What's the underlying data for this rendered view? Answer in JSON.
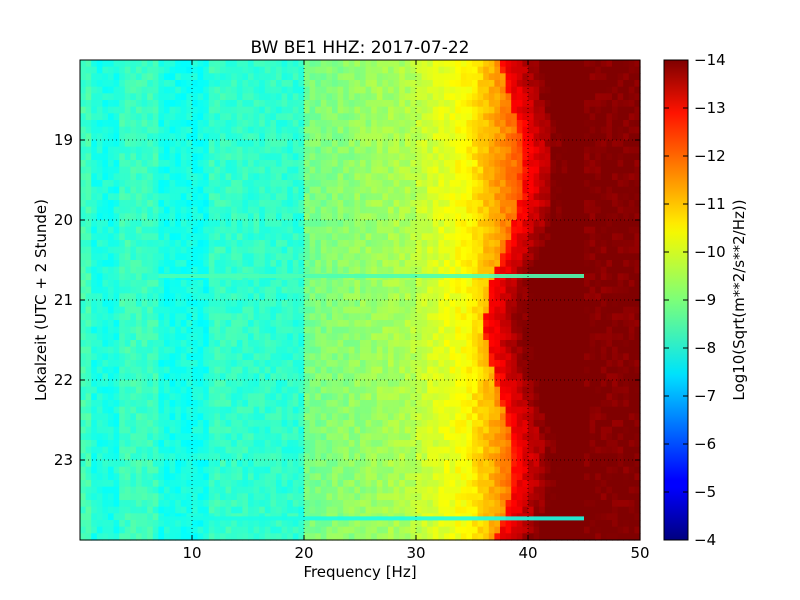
{
  "chart_data": {
    "type": "heatmap",
    "title": "BW BE1 HHZ: 2017-07-22",
    "xlabel": "Frequency [Hz]",
    "ylabel": "Lokalzeit (UTC + 2 Stunde)",
    "xlim": [
      0,
      50
    ],
    "ylim": [
      24,
      18
    ],
    "x_ticks": [
      10,
      20,
      30,
      40,
      50
    ],
    "y_ticks": [
      19,
      20,
      21,
      22,
      23
    ],
    "grid": true,
    "colormap": "jet",
    "colorbar": {
      "label": "Log10(Sqrt(m**2/s**2/Hz))",
      "range": [
        -14,
        -4
      ],
      "ticks": [
        -4,
        -5,
        -6,
        -7,
        -8,
        -9,
        -10,
        -11,
        -12,
        -13,
        -14
      ]
    },
    "approx_levels": {
      "0-20 Hz": -8.5,
      "20-30 Hz": -9.3,
      "30-38 Hz": -10.5,
      "38-42 Hz": -12.5,
      "42-50 Hz": -14
    },
    "horizontal_lines": [
      {
        "time": 20.7,
        "freq_range": [
          7,
          45
        ],
        "level": -8.5
      },
      {
        "time": 23.73,
        "freq_range": [
          7,
          45
        ],
        "level": -8.0
      }
    ]
  }
}
